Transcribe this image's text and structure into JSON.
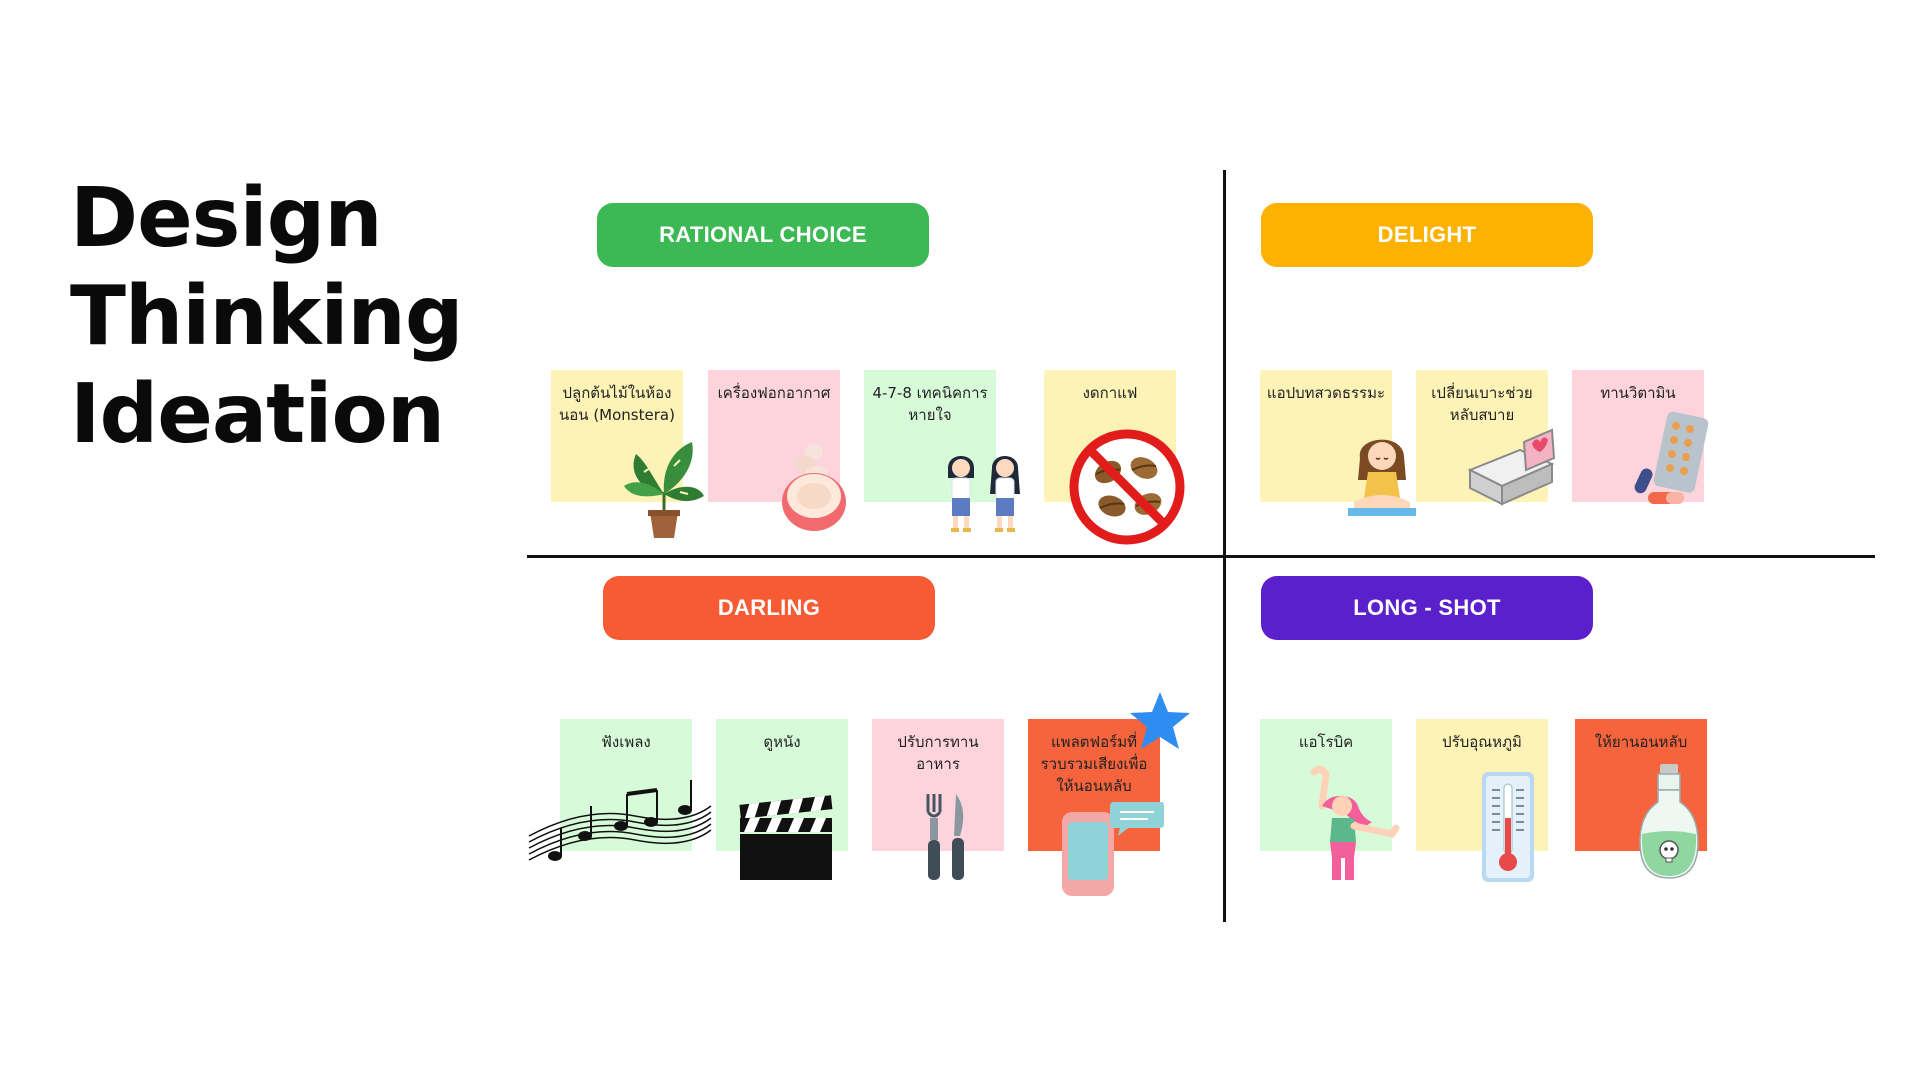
{
  "title": {
    "line1": "Design",
    "line2": "Thinking",
    "line3": "Ideation"
  },
  "quadrants": {
    "rational_choice": {
      "label": "RATIONAL CHOICE",
      "color": "#3cb955",
      "notes": [
        {
          "text": "ปลูกต้นไม้ในห้องนอน (Monstera)",
          "icon": "monstera-plant-icon"
        },
        {
          "text": "เครื่องฟอกอากาศ",
          "icon": "air-purifier-icon"
        },
        {
          "text": "4-7-8 เทคนิคการหายใจ",
          "icon": "breathing-kids-icon"
        },
        {
          "text": "งดกาแฟ",
          "icon": "no-coffee-icon"
        }
      ]
    },
    "delight": {
      "label": "DELIGHT",
      "color": "#fdb100",
      "notes": [
        {
          "text": "แอปบทสวดธรรมะ",
          "icon": "meditating-girl-icon"
        },
        {
          "text": "เปลี่ยนเบาะช่วยหลับสบาย",
          "icon": "bed-icon"
        },
        {
          "text": "ทานวิตามิน",
          "icon": "vitamin-pills-icon"
        }
      ]
    },
    "darling": {
      "label": "DARLING",
      "color": "#f75b33",
      "notes": [
        {
          "text": "ฟังเพลง",
          "icon": "music-notes-icon"
        },
        {
          "text": "ดูหนัง",
          "icon": "clapperboard-icon"
        },
        {
          "text": "ปรับการทานอาหาร",
          "icon": "fork-knife-icon"
        },
        {
          "text": "แพลตฟอร์มที่รวบรวมเสียงเพื่อให้นอนหลับ",
          "icon": "phone-chat-icon"
        }
      ]
    },
    "long_shot": {
      "label": "LONG - SHOT",
      "color": "#5a20cc",
      "notes": [
        {
          "text": "แอโรบิค",
          "icon": "aerobic-woman-icon"
        },
        {
          "text": "ปรับอุณหภูมิ",
          "icon": "thermometer-icon"
        },
        {
          "text": "ให้ยานอนหลับ",
          "icon": "poison-bottle-icon"
        }
      ]
    }
  },
  "highlight": {
    "icon": "star-icon",
    "color": "#2f8cf0"
  }
}
